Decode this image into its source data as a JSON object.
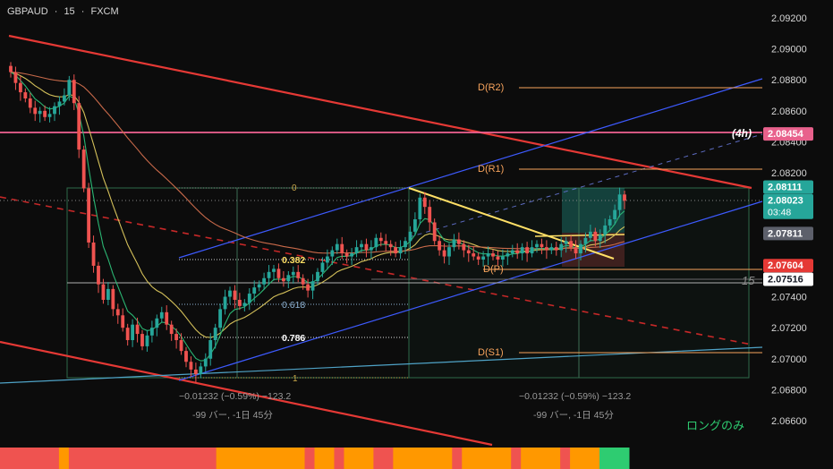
{
  "header": {
    "symbol": "GBPAUD",
    "interval": "15",
    "source": "FXCM",
    "separator": "·"
  },
  "y_axis": {
    "ticks": [
      "2.09200",
      "2.09000",
      "2.08800",
      "2.08600",
      "2.08400",
      "2.08200",
      "2.08000",
      "2.07800",
      "2.07600",
      "2.07400",
      "2.07200",
      "2.07000",
      "2.06800",
      "2.06600"
    ]
  },
  "price_tags": [
    {
      "value": "2.08454",
      "bg": "#e8618c",
      "fg": "#ffffff"
    },
    {
      "value": "2.08111",
      "bg": "#26a69a",
      "fg": "#ffffff"
    },
    {
      "value": "2.08023",
      "sub": "03:48",
      "bg": "#26a69a",
      "fg": "#ffffff"
    },
    {
      "value": "2.07811",
      "bg": "#5d606b",
      "fg": "#ffffff"
    },
    {
      "value": "2.07604",
      "bg": "#e53935",
      "fg": "#ffffff"
    },
    {
      "value": "2.07516",
      "bg": "#ffffff",
      "fg": "#131722"
    }
  ],
  "labels": {
    "h4": "(4h)",
    "pivot_r2": "D(R2)",
    "pivot_r1": "D(R1)",
    "pivot_p": "D(P)",
    "pivot_s1": "D(S1)",
    "fib_0": "0",
    "fib_0382": "0.382",
    "fib_0618": "0.618",
    "fib_0786": "0.786",
    "fib_1": "1",
    "count15": "15",
    "measure1_a": "−0.01232 (−0.59%) −123.2",
    "measure1_b": "-99 バー, -1日 45分",
    "measure2_a": "−0.01232 (−0.59%) −123.2",
    "measure2_b": "-99 バー, -1日 45分",
    "long_only": "ロングのみ"
  },
  "colors": {
    "bull": "#26a69a",
    "bear": "#ef5350",
    "pivot": "#f7a35c",
    "blue_channel": "#3d5afe",
    "red_trend": "#e53935",
    "pink_level": "#f06292",
    "yellow_trend": "#ffe066",
    "ema_yellow": "#d4c05a",
    "ema_orange": "#c96a4a",
    "ema_green": "#2bb673",
    "long_only": "#2ecc71"
  },
  "chart_data": {
    "type": "candlestick",
    "title": "GBPAUD · 15 · FXCM",
    "ylim": [
      2.0648,
      2.0934
    ],
    "last_price": 2.08023,
    "levels": {
      "h4": 2.08454,
      "pivot_r2": 2.0875,
      "pivot_r1": 2.0822,
      "pivot_p": 2.0758,
      "pivot_s1": 2.0704,
      "fib_0": 2.08111,
      "fib_0382": 2.0764,
      "fib_0618": 2.0737,
      "fib_0786": 2.0716,
      "fib_1": 2.0688
    },
    "close_series": [
      2.0885,
      2.0878,
      2.0872,
      2.0868,
      2.0862,
      2.0858,
      2.086,
      2.0856,
      2.0858,
      2.0863,
      2.0866,
      2.087,
      2.088,
      2.0865,
      2.0835,
      2.081,
      2.0775,
      2.076,
      2.0748,
      2.0738,
      2.0745,
      2.0732,
      2.0728,
      2.072,
      2.0712,
      2.0722,
      2.0716,
      2.0708,
      2.0715,
      2.072,
      2.0726,
      2.073,
      2.0722,
      2.0716,
      2.0712,
      2.0705,
      2.0698,
      2.0693,
      2.069,
      2.0695,
      2.07,
      2.0712,
      2.072,
      2.0732,
      2.074,
      2.0744,
      2.0738,
      2.0734,
      2.0736,
      2.0742,
      2.0746,
      2.0748,
      2.0752,
      2.0756,
      2.0758,
      2.0752,
      2.075,
      2.0754,
      2.0756,
      2.0752,
      2.0748,
      2.0744,
      2.075,
      2.0756,
      2.0762,
      2.0766,
      2.077,
      2.0774,
      2.0768,
      2.0766,
      2.0768,
      2.0772,
      2.0774,
      2.077,
      2.0772,
      2.0778,
      2.0776,
      2.0774,
      2.0772,
      2.0768,
      2.0772,
      2.0776,
      2.0782,
      2.079,
      2.0804,
      2.0798,
      2.0788,
      2.0776,
      2.077,
      2.0766,
      2.0772,
      2.0777,
      2.0774,
      2.077,
      2.0768,
      2.0766,
      2.0764,
      2.0766,
      2.0768,
      2.0766,
      2.0764,
      2.0766,
      2.0768,
      2.077,
      2.0768,
      2.0772,
      2.0768,
      2.0772,
      2.0774,
      2.0772,
      2.077,
      2.0772,
      2.077,
      2.0774,
      2.0776,
      2.0772,
      2.0768,
      2.0774,
      2.0778,
      2.0782,
      2.0776,
      2.078,
      2.0786,
      2.079,
      2.0796,
      2.0806,
      2.0802
    ],
    "bias_bar": [
      {
        "color": "#ef5350",
        "weight": 6
      },
      {
        "color": "#ff9800",
        "weight": 1
      },
      {
        "color": "#ef5350",
        "weight": 15
      },
      {
        "color": "#ff9800",
        "weight": 9
      },
      {
        "color": "#ef5350",
        "weight": 1
      },
      {
        "color": "#ff9800",
        "weight": 2
      },
      {
        "color": "#ef5350",
        "weight": 1
      },
      {
        "color": "#ff9800",
        "weight": 3
      },
      {
        "color": "#ef5350",
        "weight": 2
      },
      {
        "color": "#ff9800",
        "weight": 6
      },
      {
        "color": "#ef5350",
        "weight": 1
      },
      {
        "color": "#ff9800",
        "weight": 5
      },
      {
        "color": "#ef5350",
        "weight": 1
      },
      {
        "color": "#ff9800",
        "weight": 4
      },
      {
        "color": "#ef5350",
        "weight": 1
      },
      {
        "color": "#ff9800",
        "weight": 3
      },
      {
        "color": "#2ecc71",
        "weight": 3
      }
    ]
  }
}
